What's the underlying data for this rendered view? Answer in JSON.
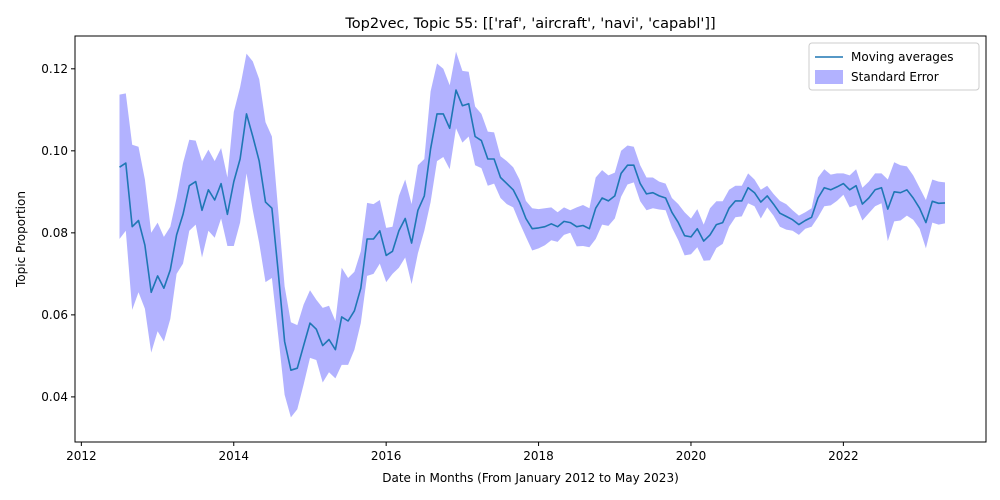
{
  "chart_data": {
    "type": "line",
    "title": "Top2vec, Topic 55: [['raf', 'aircraft', 'navi', 'capabl']]",
    "xlabel": "Date in Months (From January 2012 to May 2023)",
    "ylabel": "Topic Proportion",
    "xlim": [
      "2011-12-01",
      "2023-11-15"
    ],
    "ylim": [
      0.029,
      0.128
    ],
    "x_ticks": [
      "2012",
      "2014",
      "2016",
      "2018",
      "2020",
      "2022"
    ],
    "y_ticks": [
      "0.04",
      "0.06",
      "0.08",
      "0.10",
      "0.12"
    ],
    "grid": false,
    "legend_position": "top-right",
    "colors": {
      "line": "#1f77b4",
      "band": "#0000ff"
    },
    "series": [
      {
        "name": "Moving averages",
        "kind": "line",
        "x": [
          "2012-07",
          "2012-08",
          "2012-09",
          "2012-10",
          "2012-11",
          "2012-12",
          "2013-01",
          "2013-02",
          "2013-03",
          "2013-04",
          "2013-05",
          "2013-06",
          "2013-07",
          "2013-08",
          "2013-09",
          "2013-10",
          "2013-11",
          "2013-12",
          "2014-01",
          "2014-02",
          "2014-03",
          "2014-04",
          "2014-05",
          "2014-06",
          "2014-07",
          "2014-08",
          "2014-09",
          "2014-10",
          "2014-11",
          "2014-12",
          "2015-01",
          "2015-02",
          "2015-03",
          "2015-04",
          "2015-05",
          "2015-06",
          "2015-07",
          "2015-08",
          "2015-09",
          "2015-10",
          "2015-11",
          "2015-12",
          "2016-01",
          "2016-02",
          "2016-03",
          "2016-04",
          "2016-05",
          "2016-06",
          "2016-07",
          "2016-08",
          "2016-09",
          "2016-10",
          "2016-11",
          "2016-12",
          "2017-01",
          "2017-02",
          "2017-03",
          "2017-04",
          "2017-05",
          "2017-06",
          "2017-07",
          "2017-08",
          "2017-09",
          "2017-10",
          "2017-11",
          "2017-12",
          "2018-01",
          "2018-02",
          "2018-03",
          "2018-04",
          "2018-05",
          "2018-06",
          "2018-07",
          "2018-08",
          "2018-09",
          "2018-10",
          "2018-11",
          "2018-12",
          "2019-01",
          "2019-02",
          "2019-03",
          "2019-04",
          "2019-05",
          "2019-06",
          "2019-07",
          "2019-08",
          "2019-09",
          "2019-10",
          "2019-11",
          "2019-12",
          "2020-01",
          "2020-02",
          "2020-03",
          "2020-04",
          "2020-05",
          "2020-06",
          "2020-07",
          "2020-08",
          "2020-09",
          "2020-10",
          "2020-11",
          "2020-12",
          "2021-01",
          "2021-02",
          "2021-03",
          "2021-04",
          "2021-05",
          "2021-06",
          "2021-07",
          "2021-08",
          "2021-09",
          "2021-10",
          "2021-11",
          "2021-12",
          "2022-01",
          "2022-02",
          "2022-03",
          "2022-04",
          "2022-05",
          "2022-06",
          "2022-07",
          "2022-08",
          "2022-09",
          "2022-10",
          "2022-11",
          "2022-12",
          "2023-01",
          "2023-02",
          "2023-03",
          "2023-04",
          "2023-05"
        ],
        "y": [
          0.096,
          0.097,
          0.0815,
          0.083,
          0.077,
          0.0655,
          0.0695,
          0.0665,
          0.071,
          0.0795,
          0.0845,
          0.0915,
          0.0925,
          0.0855,
          0.0905,
          0.088,
          0.092,
          0.0845,
          0.0925,
          0.098,
          0.109,
          0.1035,
          0.0975,
          0.0875,
          0.086,
          0.0705,
          0.0535,
          0.0465,
          0.047,
          0.0525,
          0.058,
          0.0565,
          0.0525,
          0.054,
          0.0515,
          0.0595,
          0.0585,
          0.061,
          0.0665,
          0.0785,
          0.0785,
          0.0805,
          0.0745,
          0.0755,
          0.0805,
          0.0835,
          0.0775,
          0.0855,
          0.089,
          0.1005,
          0.109,
          0.109,
          0.1055,
          0.1148,
          0.111,
          0.1115,
          0.1035,
          0.1025,
          0.098,
          0.098,
          0.0935,
          0.092,
          0.0905,
          0.0875,
          0.0835,
          0.081,
          0.0812,
          0.0815,
          0.0822,
          0.0815,
          0.0828,
          0.0825,
          0.0815,
          0.0818,
          0.081,
          0.086,
          0.0885,
          0.0878,
          0.089,
          0.0945,
          0.0965,
          0.0965,
          0.092,
          0.0895,
          0.0898,
          0.089,
          0.0885,
          0.085,
          0.0825,
          0.0793,
          0.079,
          0.081,
          0.078,
          0.0795,
          0.082,
          0.0825,
          0.086,
          0.0878,
          0.0878,
          0.091,
          0.0898,
          0.0875,
          0.089,
          0.087,
          0.0848,
          0.084,
          0.0832,
          0.082,
          0.083,
          0.0838,
          0.0885,
          0.091,
          0.0905,
          0.0912,
          0.092,
          0.0905,
          0.0915,
          0.087,
          0.0885,
          0.0905,
          0.091,
          0.0858,
          0.09,
          0.0898,
          0.0905,
          0.0885,
          0.086,
          0.0825,
          0.0877,
          0.0872,
          0.0873
        ]
      },
      {
        "name": "Standard Error",
        "kind": "band",
        "upper": [
          0.1137,
          0.114,
          0.1015,
          0.101,
          0.093,
          0.08,
          0.0825,
          0.079,
          0.0815,
          0.0885,
          0.097,
          0.1027,
          0.1025,
          0.0975,
          0.1003,
          0.0975,
          0.1007,
          0.0935,
          0.1095,
          0.1155,
          0.1237,
          0.1218,
          0.1175,
          0.107,
          0.1035,
          0.0855,
          0.067,
          0.0582,
          0.0575,
          0.0625,
          0.066,
          0.0637,
          0.0617,
          0.0622,
          0.0585,
          0.0715,
          0.069,
          0.0705,
          0.0755,
          0.0873,
          0.087,
          0.088,
          0.0812,
          0.0815,
          0.089,
          0.093,
          0.087,
          0.0965,
          0.098,
          0.1145,
          0.1213,
          0.12,
          0.116,
          0.1242,
          0.1195,
          0.1193,
          0.1108,
          0.109,
          0.1047,
          0.1045,
          0.0987,
          0.0975,
          0.096,
          0.093,
          0.0878,
          0.086,
          0.0858,
          0.086,
          0.0862,
          0.085,
          0.0862,
          0.0855,
          0.0862,
          0.0868,
          0.086,
          0.0935,
          0.0953,
          0.094,
          0.0947,
          0.1,
          0.1013,
          0.101,
          0.0965,
          0.0935,
          0.0935,
          0.0925,
          0.092,
          0.0885,
          0.087,
          0.085,
          0.0835,
          0.0858,
          0.082,
          0.086,
          0.0877,
          0.0877,
          0.0905,
          0.0915,
          0.0915,
          0.0945,
          0.093,
          0.0905,
          0.0915,
          0.0895,
          0.0878,
          0.087,
          0.0855,
          0.0842,
          0.085,
          0.086,
          0.0935,
          0.0955,
          0.0942,
          0.0945,
          0.0945,
          0.094,
          0.0955,
          0.091,
          0.0925,
          0.0945,
          0.0945,
          0.093,
          0.0972,
          0.0965,
          0.0962,
          0.094,
          0.091,
          0.088,
          0.093,
          0.0925,
          0.0923
        ],
        "lower": [
          0.0785,
          0.0805,
          0.0612,
          0.0655,
          0.0615,
          0.0508,
          0.056,
          0.0535,
          0.059,
          0.07,
          0.0725,
          0.0805,
          0.082,
          0.074,
          0.0805,
          0.0788,
          0.0835,
          0.0768,
          0.0768,
          0.0825,
          0.0945,
          0.0855,
          0.0775,
          0.068,
          0.069,
          0.055,
          0.0405,
          0.035,
          0.037,
          0.043,
          0.0495,
          0.049,
          0.0435,
          0.046,
          0.0445,
          0.0478,
          0.0478,
          0.0515,
          0.058,
          0.0695,
          0.07,
          0.0725,
          0.068,
          0.07,
          0.0715,
          0.074,
          0.0675,
          0.075,
          0.0805,
          0.0875,
          0.0975,
          0.0985,
          0.0955,
          0.1055,
          0.102,
          0.1035,
          0.0965,
          0.0958,
          0.0915,
          0.092,
          0.0885,
          0.087,
          0.0862,
          0.0825,
          0.079,
          0.0757,
          0.0762,
          0.077,
          0.0782,
          0.0778,
          0.0795,
          0.08,
          0.0767,
          0.0768,
          0.0765,
          0.0785,
          0.082,
          0.0817,
          0.0835,
          0.0888,
          0.0918,
          0.0923,
          0.0877,
          0.0855,
          0.086,
          0.0857,
          0.0855,
          0.0813,
          0.0782,
          0.0745,
          0.0748,
          0.0765,
          0.0732,
          0.0733,
          0.0763,
          0.0773,
          0.0815,
          0.0838,
          0.084,
          0.0872,
          0.0865,
          0.0835,
          0.0862,
          0.0842,
          0.0815,
          0.0808,
          0.0805,
          0.0795,
          0.081,
          0.0815,
          0.0838,
          0.0865,
          0.0867,
          0.0878,
          0.0893,
          0.0862,
          0.0868,
          0.083,
          0.0848,
          0.0865,
          0.0872,
          0.078,
          0.0828,
          0.083,
          0.0842,
          0.0832,
          0.081,
          0.0762,
          0.0825,
          0.082,
          0.0823
        ]
      }
    ]
  }
}
